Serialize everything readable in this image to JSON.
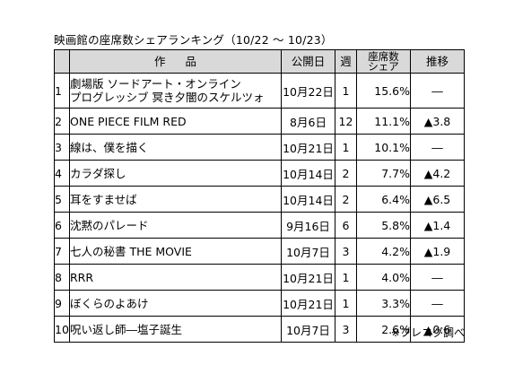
{
  "title": "映画館の座席数シェアランキング（10/22 〜 10/23）",
  "columns": {
    "title": "作品",
    "release": "公開日",
    "weeks": "週",
    "share_line1": "座席数",
    "share_line2": "シェア",
    "trend": "推移"
  },
  "rows": [
    {
      "rank": "1",
      "title_l1": "劇場版 ソードアート・オンライン",
      "title_l2": "プログレッシブ 冥き夕闇のスケルツォ",
      "release": "10月22日",
      "weeks": "1",
      "share": "15.6%",
      "trend": "―"
    },
    {
      "rank": "2",
      "title_l1": "ONE PIECE FILM RED",
      "title_l2": "",
      "release": "8月6日",
      "weeks": "12",
      "share": "11.1%",
      "trend": "▲3.8"
    },
    {
      "rank": "3",
      "title_l1": "線は、僕を描く",
      "title_l2": "",
      "release": "10月21日",
      "weeks": "1",
      "share": "10.1%",
      "trend": "―"
    },
    {
      "rank": "4",
      "title_l1": "カラダ探し",
      "title_l2": "",
      "release": "10月14日",
      "weeks": "2",
      "share": "7.7%",
      "trend": "▲4.2"
    },
    {
      "rank": "5",
      "title_l1": "耳をすませば",
      "title_l2": "",
      "release": "10月14日",
      "weeks": "2",
      "share": "6.4%",
      "trend": "▲6.5"
    },
    {
      "rank": "6",
      "title_l1": "沈黙のパレード",
      "title_l2": "",
      "release": "9月16日",
      "weeks": "6",
      "share": "5.8%",
      "trend": "▲1.4"
    },
    {
      "rank": "7",
      "title_l1": "七人の秘書 THE MOVIE",
      "title_l2": "",
      "release": "10月7日",
      "weeks": "3",
      "share": "4.2%",
      "trend": "▲1.9"
    },
    {
      "rank": "8",
      "title_l1": "RRR",
      "title_l2": "",
      "release": "10月21日",
      "weeks": "1",
      "share": "4.0%",
      "trend": "―"
    },
    {
      "rank": "9",
      "title_l1": "ぼくらのよあけ",
      "title_l2": "",
      "release": "10月21日",
      "weeks": "1",
      "share": "3.3%",
      "trend": "―"
    },
    {
      "rank": "10",
      "title_l1": "呪い返し師―塩子誕生",
      "title_l2": "",
      "release": "10月7日",
      "weeks": "3",
      "share": "2.6%",
      "trend": "▲0.6"
    }
  ],
  "source": "※プレコグ調べ"
}
